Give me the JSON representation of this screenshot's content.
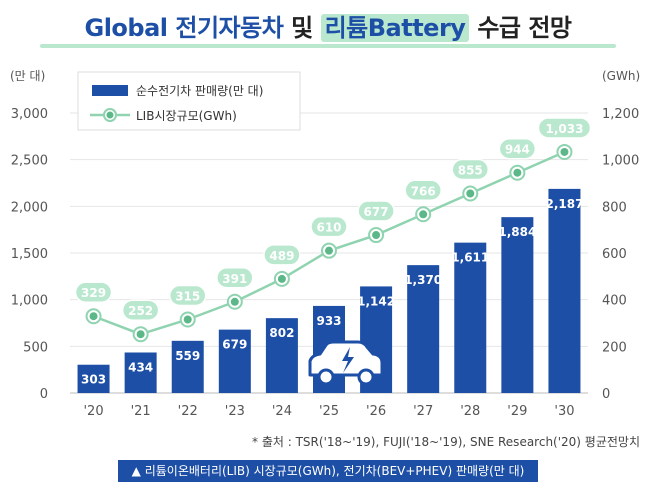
{
  "title": {
    "part1": "Global 전기자동차",
    "part2": "및",
    "part3": "리튬Battery",
    "part4": "수급 전망"
  },
  "source": "* 출처 : TSR('18~'19), FUJI('18~'19), SNE Research('20) 평균전망치",
  "caption": "▲ 리튬이온배터리(LIB) 시장규모(GWh), 전기차(BEV+PHEV) 판매량(만 대)",
  "colors": {
    "bar": "#1d4fa6",
    "line": "#8fd3b0",
    "marker": "#5cb888",
    "label_bg": "#b9e8cf",
    "label_text": "#ffffff"
  },
  "icons": {
    "car": "electric-car-icon"
  },
  "chart_data": {
    "type": "bar",
    "categories": [
      "'20",
      "'21",
      "'22",
      "'23",
      "'24",
      "'25",
      "'26",
      "'27",
      "'28",
      "'29",
      "'30"
    ],
    "left_unit": "(만 대)",
    "right_unit": "(GWh)",
    "left_ylim": [
      0,
      3000
    ],
    "right_ylim": [
      0,
      1200
    ],
    "left_ticks": [
      "0",
      "500",
      "1,000",
      "1,500",
      "2,000",
      "2,500",
      "3,000"
    ],
    "right_ticks": [
      "0",
      "200",
      "400",
      "600",
      "800",
      "1,000",
      "1,200"
    ],
    "legend_position": "top-left",
    "series": [
      {
        "name": "순수전기차 판매량(만 대)",
        "type": "bar",
        "axis": "left",
        "values": [
          303,
          434,
          559,
          679,
          802,
          933,
          1142,
          1370,
          1611,
          1884,
          2187
        ],
        "labels": [
          "303",
          "434",
          "559",
          "679",
          "802",
          "933",
          "1,142",
          "1,370",
          "1,611",
          "1,884",
          "2,187"
        ]
      },
      {
        "name": "LIB시장규모(GWh)",
        "type": "line",
        "axis": "right",
        "values": [
          329,
          252,
          315,
          391,
          489,
          610,
          677,
          766,
          855,
          944,
          1033
        ],
        "labels": [
          "329",
          "252",
          "315",
          "391",
          "489",
          "610",
          "677",
          "766",
          "855",
          "944",
          "1,033"
        ]
      }
    ]
  }
}
